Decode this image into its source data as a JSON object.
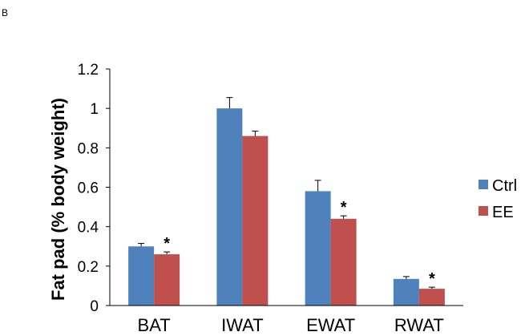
{
  "panel_label": "B",
  "chart_data": {
    "type": "bar",
    "title": "",
    "xlabel": "",
    "ylabel": "Fat pad (% body weight)",
    "categories": [
      "BAT",
      "IWAT",
      "EWAT",
      "RWAT"
    ],
    "ylim": [
      0,
      1.2
    ],
    "yticks": [
      0,
      0.2,
      0.4,
      0.6,
      0.8,
      1,
      1.2
    ],
    "ytick_labels": [
      "0",
      "0.2",
      "0.4",
      "0.6",
      "0.8",
      "1",
      "1.2"
    ],
    "grid": false,
    "legend_position": "right",
    "series": [
      {
        "name": "Ctrl",
        "color": "#4F81BD",
        "values": [
          0.3,
          1.0,
          0.58,
          0.135
        ],
        "errors": [
          0.015,
          0.055,
          0.055,
          0.012
        ],
        "significance": [
          "",
          "",
          "",
          ""
        ]
      },
      {
        "name": "EE",
        "color": "#C0504D",
        "values": [
          0.26,
          0.86,
          0.44,
          0.085
        ],
        "errors": [
          0.012,
          0.025,
          0.015,
          0.008
        ],
        "significance": [
          "*",
          "",
          "*",
          "*"
        ]
      }
    ]
  }
}
